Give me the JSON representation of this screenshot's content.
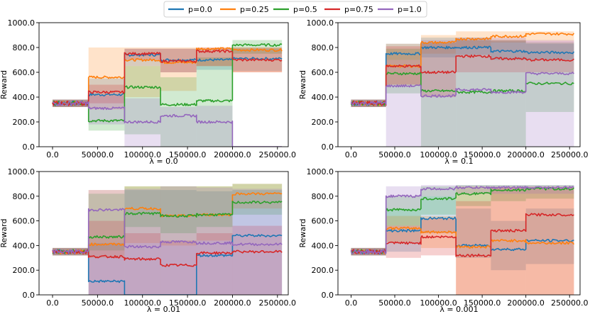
{
  "colors": {
    "p00": "#1f77b4",
    "p025": "#ff7f0e",
    "p05": "#2ca02c",
    "p075": "#d62728",
    "p10": "#9467bd"
  },
  "legend": [
    {
      "key": "p00",
      "label": "p=0.0"
    },
    {
      "key": "p025",
      "label": "p=0.25"
    },
    {
      "key": "p05",
      "label": "p=0.5"
    },
    {
      "key": "p075",
      "label": "p=0.75"
    },
    {
      "key": "p10",
      "label": "p=1.0"
    }
  ],
  "chart_data": [
    {
      "type": "line",
      "xlabel": "λ = 0.0",
      "ylabel": "Reward",
      "xlim": [
        -15000,
        262000
      ],
      "ylim": [
        0,
        1000
      ],
      "xticks": [
        0,
        50000,
        100000,
        150000,
        200000,
        250000
      ],
      "xtick_labels": [
        "0.0",
        "50000.0",
        "100000.0",
        "150000.0",
        "200000.0",
        "250000.0"
      ],
      "yticks": [
        0,
        200,
        400,
        600,
        800,
        1000
      ],
      "ytick_labels": [
        "0.0",
        "200.0",
        "400.0",
        "600.0",
        "800.0",
        "1000.0"
      ],
      "segment_boundaries": [
        0,
        40000,
        80000,
        120000,
        160000,
        200000,
        255000
      ],
      "series": [
        {
          "key": "p00",
          "name": "p=0.0",
          "values": [
            350,
            420,
            740,
            700,
            700,
            710,
            600
          ],
          "bands": [
            [
              320,
              380
            ],
            [
              300,
              550
            ],
            [
              650,
              790
            ],
            [
              600,
              790
            ],
            [
              620,
              790
            ],
            [
              610,
              790
            ],
            [
              450,
              780
            ]
          ]
        },
        {
          "key": "p025",
          "name": "p=0.25",
          "values": [
            350,
            560,
            700,
            680,
            790,
            780,
            780
          ],
          "bands": [
            [
              320,
              380
            ],
            [
              300,
              800
            ],
            [
              400,
              800
            ],
            [
              450,
              800
            ],
            [
              650,
              800
            ],
            [
              600,
              800
            ],
            [
              600,
              800
            ]
          ]
        },
        {
          "key": "p05",
          "name": "p=0.5",
          "values": [
            350,
            210,
            480,
            340,
            370,
            820,
            640
          ],
          "bands": [
            [
              320,
              380
            ],
            [
              130,
              300
            ],
            [
              100,
              650
            ],
            [
              0,
              560
            ],
            [
              0,
              720
            ],
            [
              750,
              860
            ],
            [
              500,
              780
            ]
          ]
        },
        {
          "key": "p075",
          "name": "p=0.75",
          "values": [
            350,
            440,
            750,
            690,
            770,
            700,
            520
          ],
          "bands": [
            [
              320,
              380
            ],
            [
              350,
              500
            ],
            [
              700,
              790
            ],
            [
              600,
              790
            ],
            [
              650,
              800
            ],
            [
              600,
              800
            ],
            [
              250,
              640
            ]
          ]
        },
        {
          "key": "p10",
          "name": "p=1.0",
          "values": [
            350,
            310,
            200,
            250,
            200,
            0,
            0
          ],
          "bands": [
            [
              320,
              380
            ],
            [
              180,
              410
            ],
            [
              0,
              390
            ],
            [
              0,
              320
            ],
            [
              0,
              330
            ],
            [
              0,
              0
            ],
            [
              0,
              0
            ]
          ]
        }
      ]
    },
    {
      "type": "line",
      "xlabel": "λ = 0.1",
      "ylabel": "Reward",
      "xlim": [
        -15000,
        262000
      ],
      "ylim": [
        0,
        1000
      ],
      "xticks": [
        0,
        50000,
        100000,
        150000,
        200000,
        250000
      ],
      "xtick_labels": [
        "0.0",
        "50000.0",
        "100000.0",
        "150000.0",
        "200000.0",
        "250000.0"
      ],
      "yticks": [
        0,
        200,
        400,
        600,
        800,
        1000
      ],
      "ytick_labels": [
        "0.0",
        "200.0",
        "400.0",
        "600.0",
        "800.0",
        "1000.0"
      ],
      "segment_boundaries": [
        0,
        40000,
        80000,
        120000,
        160000,
        200000,
        255000
      ],
      "series": [
        {
          "key": "p00",
          "name": "p=0.0",
          "values": [
            350,
            750,
            800,
            800,
            770,
            760,
            830
          ],
          "bands": [
            [
              320,
              380
            ],
            [
              700,
              830
            ],
            [
              720,
              880
            ],
            [
              740,
              880
            ],
            [
              700,
              850
            ],
            [
              700,
              830
            ],
            [
              760,
              900
            ]
          ]
        },
        {
          "key": "p025",
          "name": "p=0.25",
          "values": [
            350,
            650,
            840,
            870,
            890,
            910,
            480
          ],
          "bands": [
            [
              320,
              380
            ],
            [
              500,
              830
            ],
            [
              750,
              900
            ],
            [
              800,
              930
            ],
            [
              840,
              930
            ],
            [
              850,
              930
            ],
            [
              0,
              930
            ]
          ]
        },
        {
          "key": "p05",
          "name": "p=0.5",
          "values": [
            350,
            590,
            450,
            440,
            450,
            510,
            510
          ],
          "bands": [
            [
              320,
              380
            ],
            [
              430,
              790
            ],
            [
              0,
              840
            ],
            [
              0,
              860
            ],
            [
              0,
              860
            ],
            [
              280,
              840
            ],
            [
              0,
              830
            ]
          ]
        },
        {
          "key": "p075",
          "name": "p=0.75",
          "values": [
            350,
            650,
            600,
            730,
            710,
            700,
            700
          ],
          "bands": [
            [
              320,
              380
            ],
            [
              500,
              810
            ],
            [
              400,
              840
            ],
            [
              600,
              860
            ],
            [
              600,
              860
            ],
            [
              600,
              850
            ],
            [
              550,
              850
            ]
          ]
        },
        {
          "key": "p10",
          "name": "p=1.0",
          "values": [
            350,
            490,
            410,
            460,
            440,
            590,
            460
          ],
          "bands": [
            [
              320,
              380
            ],
            [
              0,
              700
            ],
            [
              0,
              860
            ],
            [
              0,
              880
            ],
            [
              0,
              880
            ],
            [
              0,
              860
            ],
            [
              0,
              860
            ]
          ]
        }
      ]
    },
    {
      "type": "line",
      "xlabel": "λ = 0.01",
      "ylabel": "Reward",
      "xlim": [
        -15000,
        262000
      ],
      "ylim": [
        0,
        1000
      ],
      "xticks": [
        0,
        50000,
        100000,
        150000,
        200000,
        250000
      ],
      "xtick_labels": [
        "0.0",
        "50000.0",
        "100000.0",
        "150000.0",
        "200000.0",
        "250000.0"
      ],
      "yticks": [
        0,
        200,
        400,
        600,
        800,
        1000
      ],
      "ytick_labels": [
        "0.0",
        "200.0",
        "400.0",
        "600.0",
        "800.0",
        "1000.0"
      ],
      "segment_boundaries": [
        0,
        40000,
        80000,
        120000,
        160000,
        200000,
        255000
      ],
      "series": [
        {
          "key": "p00",
          "name": "p=0.0",
          "values": [
            350,
            110,
            0,
            0,
            320,
            480,
            300
          ],
          "bands": [
            [
              320,
              380
            ],
            [
              0,
              420
            ],
            [
              0,
              850
            ],
            [
              0,
              850
            ],
            [
              0,
              840
            ],
            [
              0,
              850
            ],
            [
              0,
              860
            ]
          ]
        },
        {
          "key": "p025",
          "name": "p=0.25",
          "values": [
            350,
            410,
            700,
            640,
            650,
            820,
            720
          ],
          "bands": [
            [
              320,
              380
            ],
            [
              300,
              850
            ],
            [
              420,
              880
            ],
            [
              400,
              880
            ],
            [
              440,
              880
            ],
            [
              700,
              900
            ],
            [
              600,
              900
            ]
          ]
        },
        {
          "key": "p05",
          "name": "p=0.5",
          "values": [
            350,
            470,
            660,
            640,
            650,
            750,
            840
          ],
          "bands": [
            [
              320,
              380
            ],
            [
              360,
              820
            ],
            [
              550,
              880
            ],
            [
              500,
              880
            ],
            [
              550,
              880
            ],
            [
              650,
              900
            ],
            [
              700,
              900
            ]
          ]
        },
        {
          "key": "p075",
          "name": "p=0.75",
          "values": [
            350,
            310,
            290,
            240,
            340,
            350,
            440
          ],
          "bands": [
            [
              320,
              380
            ],
            [
              0,
              600
            ],
            [
              0,
              500
            ],
            [
              0,
              440
            ],
            [
              0,
              500
            ],
            [
              0,
              560
            ],
            [
              0,
              650
            ]
          ]
        },
        {
          "key": "p10",
          "name": "p=1.0",
          "values": [
            350,
            690,
            390,
            430,
            420,
            410,
            400
          ],
          "bands": [
            [
              320,
              380
            ],
            [
              0,
              850
            ],
            [
              0,
              860
            ],
            [
              0,
              880
            ],
            [
              0,
              870
            ],
            [
              0,
              860
            ],
            [
              0,
              860
            ]
          ]
        }
      ]
    },
    {
      "type": "line",
      "xlabel": "λ = 0.001",
      "ylabel": "Reward",
      "xlim": [
        -15000,
        262000
      ],
      "ylim": [
        0,
        1000
      ],
      "xticks": [
        0,
        50000,
        100000,
        150000,
        200000,
        250000
      ],
      "xtick_labels": [
        "0.0",
        "50000.0",
        "100000.0",
        "150000.0",
        "200000.0",
        "250000.0"
      ],
      "yticks": [
        0,
        200,
        400,
        600,
        800,
        1000
      ],
      "ytick_labels": [
        "0.0",
        "200.0",
        "400.0",
        "600.0",
        "800.0",
        "1000.0"
      ],
      "segment_boundaries": [
        0,
        40000,
        80000,
        120000,
        160000,
        200000,
        255000
      ],
      "series": [
        {
          "key": "p00",
          "name": "p=0.0",
          "values": [
            350,
            520,
            620,
            400,
            370,
            440,
            620
          ],
          "bands": [
            [
              320,
              380
            ],
            [
              350,
              700
            ],
            [
              500,
              800
            ],
            [
              300,
              700
            ],
            [
              200,
              600
            ],
            [
              250,
              700
            ],
            [
              500,
              800
            ]
          ]
        },
        {
          "key": "p025",
          "name": "p=0.25",
          "values": [
            350,
            540,
            510,
            390,
            440,
            420,
            400
          ],
          "bands": [
            [
              320,
              380
            ],
            [
              430,
              640
            ],
            [
              380,
              640
            ],
            [
              0,
              880
            ],
            [
              0,
              880
            ],
            [
              0,
              870
            ],
            [
              0,
              860
            ]
          ]
        },
        {
          "key": "p05",
          "name": "p=0.5",
          "values": [
            350,
            690,
            780,
            820,
            850,
            860,
            770
          ],
          "bands": [
            [
              320,
              380
            ],
            [
              560,
              800
            ],
            [
              650,
              880
            ],
            [
              720,
              890
            ],
            [
              760,
              890
            ],
            [
              780,
              890
            ],
            [
              650,
              890
            ]
          ]
        },
        {
          "key": "p075",
          "name": "p=0.75",
          "values": [
            350,
            420,
            470,
            320,
            520,
            650,
            870
          ],
          "bands": [
            [
              320,
              380
            ],
            [
              300,
              560
            ],
            [
              320,
              620
            ],
            [
              0,
              760
            ],
            [
              0,
              870
            ],
            [
              0,
              880
            ],
            [
              780,
              900
            ]
          ]
        },
        {
          "key": "p10",
          "name": "p=1.0",
          "values": [
            350,
            800,
            860,
            870,
            870,
            870,
            870
          ],
          "bands": [
            [
              320,
              380
            ],
            [
              700,
              880
            ],
            [
              800,
              890
            ],
            [
              820,
              890
            ],
            [
              820,
              890
            ],
            [
              820,
              890
            ],
            [
              820,
              890
            ]
          ]
        }
      ]
    }
  ]
}
